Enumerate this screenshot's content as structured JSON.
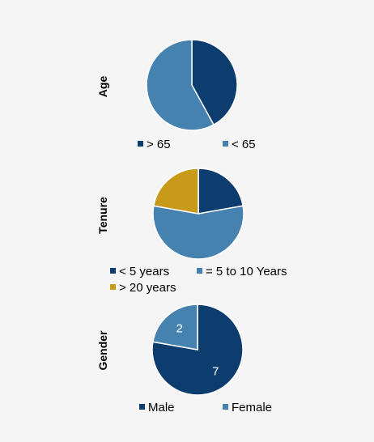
{
  "chart_data": [
    {
      "type": "pie",
      "ylabel": "Age",
      "categories": [
        "> 65",
        "< 65"
      ],
      "values": [
        42,
        58
      ],
      "data_labels": [
        "",
        ""
      ],
      "colors": [
        "#0d3d6e",
        "#4682b0"
      ],
      "legend": "bottom"
    },
    {
      "type": "pie",
      "ylabel": "Tenure",
      "categories": [
        "< 5 years",
        "= 5 to 10 Years",
        "> 20 years"
      ],
      "values": [
        2,
        5,
        2
      ],
      "data_labels": [
        "",
        "",
        ""
      ],
      "colors": [
        "#0d3d6e",
        "#4682b0",
        "#c89a1a"
      ],
      "legend": "bottom"
    },
    {
      "type": "pie",
      "ylabel": "Gender",
      "categories": [
        "Male",
        "Female"
      ],
      "values": [
        7,
        2
      ],
      "data_labels": [
        "7",
        "2"
      ],
      "colors": [
        "#0d3d6e",
        "#4682b0"
      ],
      "legend": "bottom"
    }
  ]
}
